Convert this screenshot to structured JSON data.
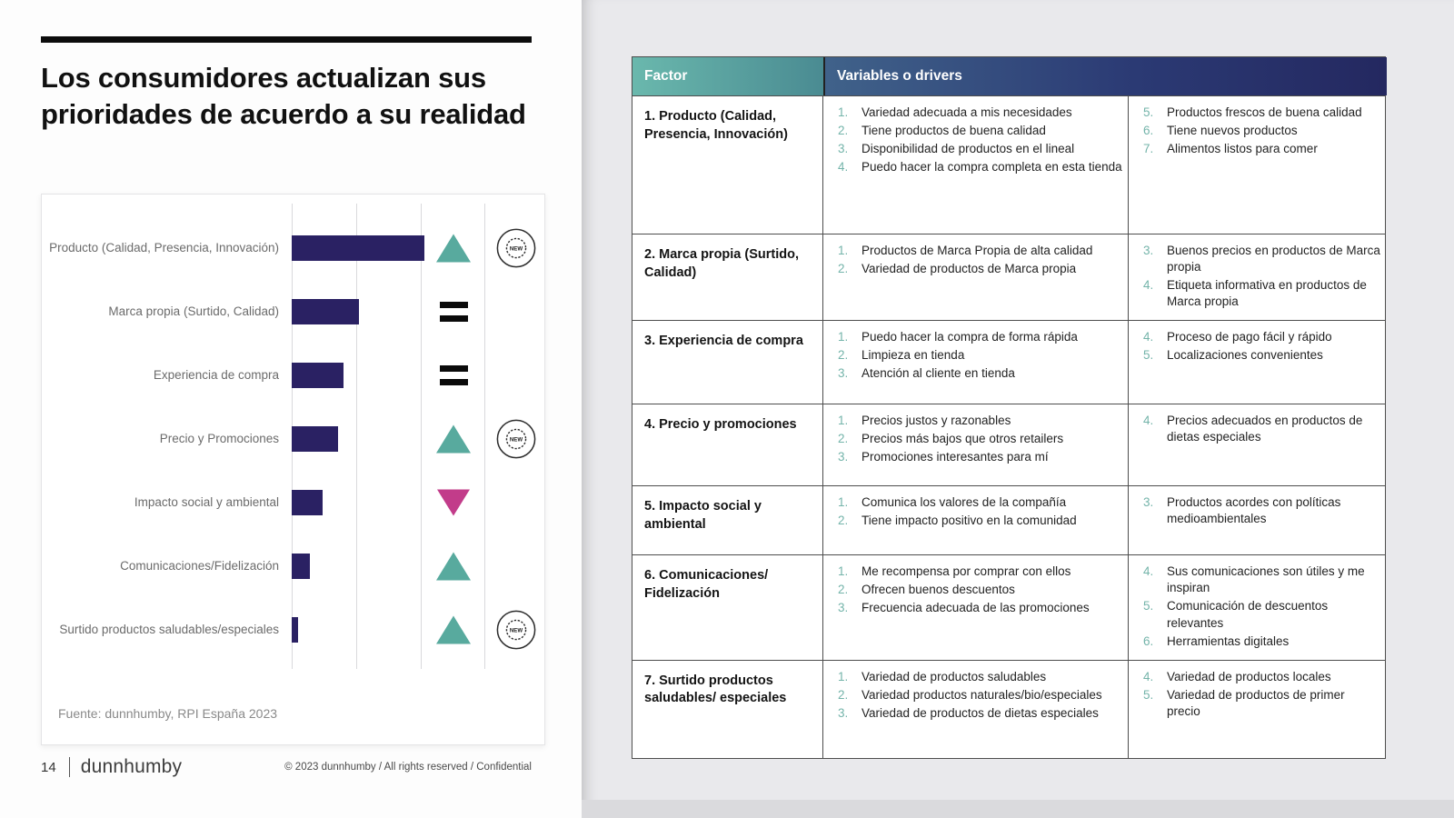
{
  "slide": {
    "title": "Los consumidores actualizan sus prioridades de acuerdo a su realidad",
    "source_note": "Fuente: dunnhumby, RPI España 2023",
    "footer": {
      "page_number": "14",
      "logo": "dunnhumby",
      "copyright": "© 2023 dunnhumby / All rights reserved / Confidential"
    }
  },
  "chart_data": {
    "type": "bar",
    "orientation": "horizontal",
    "title": "",
    "xlabel": "",
    "ylabel": "",
    "categories": [
      "Producto (Calidad, Presencia, Innovación)",
      "Marca propia (Surtido, Calidad)",
      "Experiencia de compra",
      "Precio y Promociones",
      "Impacto social y ambiental",
      "Comunicaciones/Fidelización",
      "Surtido productos saludables/especiales"
    ],
    "values": [
      100,
      51,
      39,
      35,
      23,
      14,
      5
    ],
    "xlim": [
      0,
      100
    ],
    "grid": true,
    "legend": "none",
    "trends": [
      "up",
      "equal",
      "equal",
      "up",
      "down",
      "up",
      "up"
    ],
    "new_badges": [
      true,
      false,
      false,
      true,
      false,
      false,
      true
    ],
    "badge_label": "NEW",
    "colors": {
      "bar": "#2a2163",
      "trend_up": "#58aa9e",
      "trend_down": "#c23c8a",
      "trend_equal": "#0a0a0a",
      "list_number": "#74b4aa"
    }
  },
  "table": {
    "header": {
      "factor": "Factor",
      "variables": "Variables o drivers"
    },
    "rows": [
      {
        "factor": "1. Producto (Calidad, Presencia, Innovación)",
        "items_left": [
          {
            "num": "1.",
            "text": "Variedad adecuada a mis necesidades"
          },
          {
            "num": "2.",
            "text": "Tiene productos de buena calidad"
          },
          {
            "num": "3.",
            "text": "Disponibilidad de productos en el lineal"
          },
          {
            "num": "4.",
            "text": "Puedo hacer la compra completa en esta tienda"
          }
        ],
        "items_right": [
          {
            "num": "5.",
            "text": "Productos frescos de buena calidad"
          },
          {
            "num": "6.",
            "text": "Tiene nuevos productos"
          },
          {
            "num": "7.",
            "text": "Alimentos listos para comer"
          }
        ]
      },
      {
        "factor": "2. Marca propia (Surtido, Calidad)",
        "items_left": [
          {
            "num": "1.",
            "text": "Productos de Marca Propia de alta calidad"
          },
          {
            "num": "2.",
            "text": "Variedad de productos de Marca propia"
          }
        ],
        "items_right": [
          {
            "num": "3.",
            "text": "Buenos precios en productos de Marca propia"
          },
          {
            "num": "4.",
            "text": "Etiqueta informativa en productos de Marca propia"
          }
        ]
      },
      {
        "factor": "3. Experiencia de compra",
        "items_left": [
          {
            "num": "1.",
            "text": "Puedo hacer la compra de forma rápida"
          },
          {
            "num": "2.",
            "text": "Limpieza en tienda"
          },
          {
            "num": "3.",
            "text": "Atención al cliente en tienda"
          }
        ],
        "items_right": [
          {
            "num": "4.",
            "text": "Proceso de pago fácil y rápido"
          },
          {
            "num": "5.",
            "text": "Localizaciones convenientes"
          }
        ]
      },
      {
        "factor": "4. Precio y promociones",
        "items_left": [
          {
            "num": "1.",
            "text": "Precios justos y razonables"
          },
          {
            "num": "2.",
            "text": "Precios más bajos que otros retailers"
          },
          {
            "num": "3.",
            "text": "Promociones interesantes para mí"
          }
        ],
        "items_right": [
          {
            "num": "4.",
            "text": "Precios adecuados en productos de dietas especiales"
          }
        ]
      },
      {
        "factor": "5. Impacto social y ambiental",
        "items_left": [
          {
            "num": "1.",
            "text": "Comunica los valores de la compañía"
          },
          {
            "num": "2.",
            "text": "Tiene impacto positivo en la comunidad"
          }
        ],
        "items_right": [
          {
            "num": "3.",
            "text": "Productos acordes con políticas medioambientales"
          }
        ]
      },
      {
        "factor": "6. Comunicaciones/ Fidelización",
        "items_left": [
          {
            "num": "1.",
            "text": "Me recompensa por comprar con ellos"
          },
          {
            "num": "2.",
            "text": "Ofrecen buenos descuentos"
          },
          {
            "num": "3.",
            "text": "Frecuencia adecuada de las promociones"
          }
        ],
        "items_right": [
          {
            "num": "4.",
            "text": "Sus comunicaciones son útiles y me inspiran"
          },
          {
            "num": "5.",
            "text": "Comunicación de descuentos relevantes"
          },
          {
            "num": "6.",
            "text": "Herramientas digitales"
          }
        ]
      },
      {
        "factor": "7. Surtido productos saludables/ especiales",
        "items_left": [
          {
            "num": "1.",
            "text": "Variedad de productos saludables"
          },
          {
            "num": "2.",
            "text": "Variedad productos naturales/bio/especiales"
          },
          {
            "num": "3.",
            "text": "Variedad de productos de dietas especiales"
          }
        ],
        "items_right": [
          {
            "num": "4.",
            "text": "Variedad de productos locales"
          },
          {
            "num": "5.",
            "text": "Variedad de productos de primer precio"
          }
        ]
      }
    ]
  }
}
